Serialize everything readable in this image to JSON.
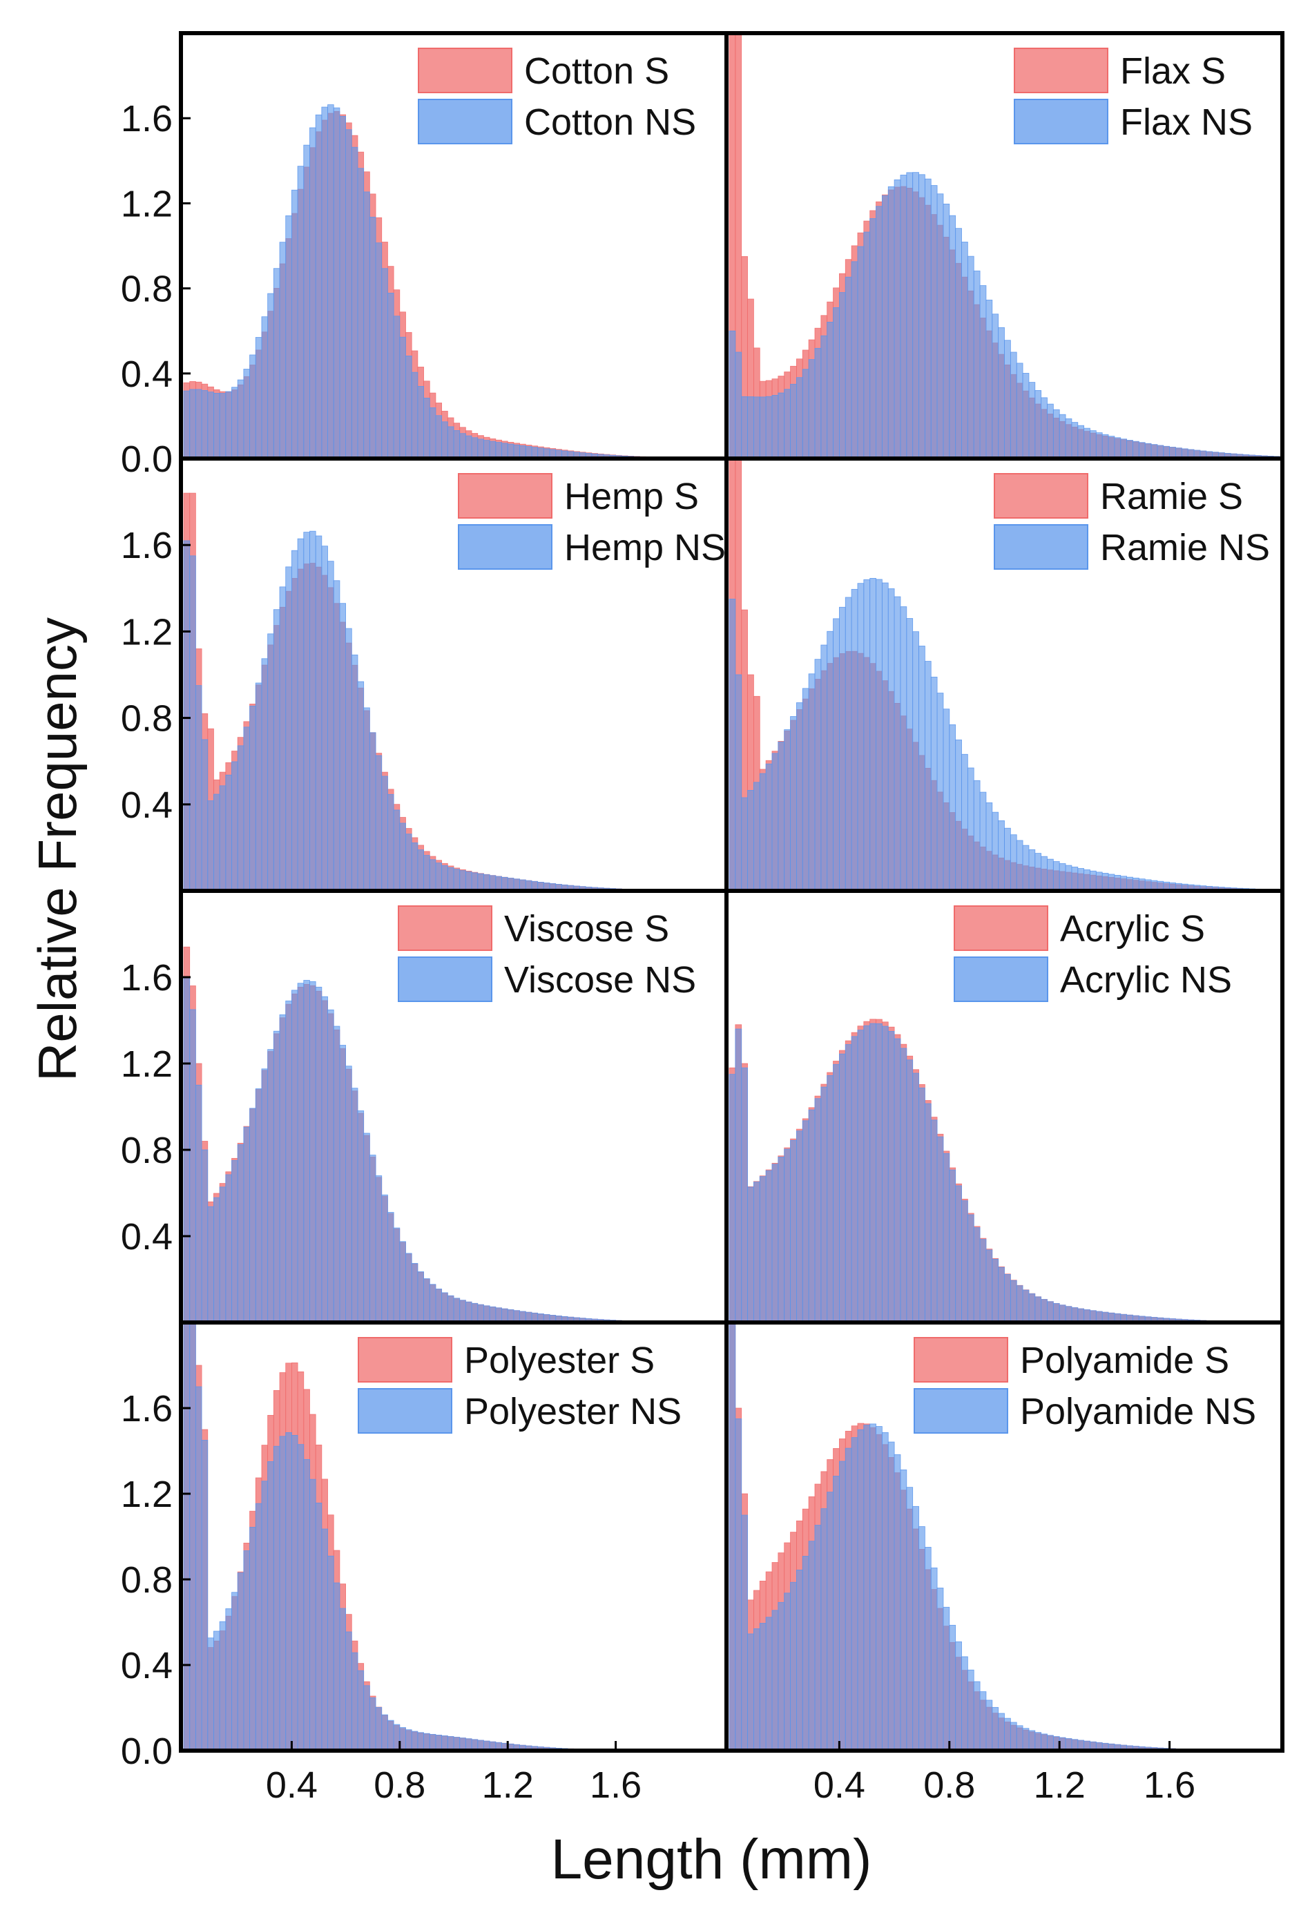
{
  "figure": {
    "ylabel": "Relative Frequency",
    "xlabel": "Length (mm)"
  },
  "colors": {
    "s_fill": "#f06b6b",
    "ns_fill": "#5a96ec",
    "frame": "#000000"
  },
  "chart_data": [
    {
      "type": "bar",
      "panel": "top-left",
      "xlim": [
        0,
        2.0
      ],
      "ylim": [
        0,
        2.0
      ],
      "xticks": [],
      "yticks": [
        0.0,
        0.4,
        0.8,
        1.2,
        1.6
      ],
      "legend_position": "top-right",
      "series": [
        {
          "name": "Cotton S",
          "color": "#f06b6b",
          "peaks": [
            {
              "mu": 0.56,
              "sigma": 0.18,
              "amp": 1.58
            },
            {
              "mu": 0.02,
              "sigma": 0.12,
              "amp": 0.34
            },
            {
              "mu": 0.95,
              "sigma": 0.34,
              "amp": 0.1
            }
          ]
        },
        {
          "name": "Cotton NS",
          "color": "#5a96ec",
          "peaks": [
            {
              "mu": 0.54,
              "sigma": 0.175,
              "amp": 1.62
            },
            {
              "mu": 0.02,
              "sigma": 0.12,
              "amp": 0.3
            },
            {
              "mu": 0.95,
              "sigma": 0.34,
              "amp": 0.09
            }
          ]
        }
      ]
    },
    {
      "type": "bar",
      "panel": "top-right",
      "xlim": [
        0,
        2.0
      ],
      "ylim": [
        0,
        2.0
      ],
      "xticks": [],
      "yticks": [],
      "legend_position": "top-right",
      "series": [
        {
          "name": "Flax S",
          "color": "#f06b6b",
          "spike": [
            2.0,
            2.0,
            0.95,
            0.75,
            0.52
          ],
          "peaks": [
            {
              "mu": 0.62,
              "sigma": 0.24,
              "amp": 1.22
            },
            {
              "mu": 0.0,
              "sigma": 0.15,
              "amp": 0.3
            },
            {
              "mu": 1.1,
              "sigma": 0.4,
              "amp": 0.12
            }
          ]
        },
        {
          "name": "Flax NS",
          "color": "#5a96ec",
          "spike": [
            0.6,
            0.5
          ],
          "peaks": [
            {
              "mu": 0.66,
              "sigma": 0.24,
              "amp": 1.28
            },
            {
              "mu": 0.0,
              "sigma": 0.15,
              "amp": 0.25
            },
            {
              "mu": 1.1,
              "sigma": 0.4,
              "amp": 0.12
            }
          ]
        }
      ]
    },
    {
      "type": "bar",
      "panel": "second-left",
      "xlim": [
        0,
        2.0
      ],
      "ylim": [
        0,
        2.0
      ],
      "xticks": [],
      "yticks": [
        0.4,
        0.8,
        1.2,
        1.6
      ],
      "legend_position": "top-right",
      "series": [
        {
          "name": "Hemp S",
          "color": "#f06b6b",
          "spike": [
            1.84,
            1.84,
            1.12,
            0.82,
            0.75
          ],
          "peaks": [
            {
              "mu": 0.47,
              "sigma": 0.18,
              "amp": 1.45
            },
            {
              "mu": 0.0,
              "sigma": 0.18,
              "amp": 0.35
            },
            {
              "mu": 0.85,
              "sigma": 0.35,
              "amp": 0.1
            }
          ]
        },
        {
          "name": "Hemp NS",
          "color": "#5a96ec",
          "spike": [
            1.62,
            1.55,
            0.95,
            0.7
          ],
          "peaks": [
            {
              "mu": 0.47,
              "sigma": 0.17,
              "amp": 1.6
            },
            {
              "mu": 0.0,
              "sigma": 0.18,
              "amp": 0.3
            },
            {
              "mu": 0.85,
              "sigma": 0.35,
              "amp": 0.1
            }
          ]
        }
      ]
    },
    {
      "type": "bar",
      "panel": "second-right",
      "xlim": [
        0,
        2.0
      ],
      "ylim": [
        0,
        2.0
      ],
      "xticks": [],
      "yticks": [],
      "legend_position": "top-right",
      "series": [
        {
          "name": "Ramie S",
          "color": "#f06b6b",
          "spike": [
            2.0,
            2.0,
            1.3,
            1.0,
            0.9
          ],
          "peaks": [
            {
              "mu": 0.45,
              "sigma": 0.22,
              "amp": 1.05
            },
            {
              "mu": 0.0,
              "sigma": 0.2,
              "amp": 0.25
            },
            {
              "mu": 1.0,
              "sigma": 0.4,
              "amp": 0.1
            }
          ]
        },
        {
          "name": "Ramie NS",
          "color": "#5a96ec",
          "spike": [
            1.35,
            1.0
          ],
          "peaks": [
            {
              "mu": 0.52,
              "sigma": 0.24,
              "amp": 1.38
            },
            {
              "mu": 0.0,
              "sigma": 0.2,
              "amp": 0.22
            },
            {
              "mu": 1.0,
              "sigma": 0.4,
              "amp": 0.12
            }
          ]
        }
      ]
    },
    {
      "type": "bar",
      "panel": "third-left",
      "xlim": [
        0,
        2.0
      ],
      "ylim": [
        0,
        2.0
      ],
      "xticks": [],
      "yticks": [
        0.4,
        0.8,
        1.2,
        1.6
      ],
      "legend_position": "top-right",
      "series": [
        {
          "name": "Viscose S",
          "color": "#f06b6b",
          "spike": [
            1.74,
            1.56,
            1.2,
            0.84
          ],
          "peaks": [
            {
              "mu": 0.46,
              "sigma": 0.19,
              "amp": 1.5
            },
            {
              "mu": 0.0,
              "sigma": 0.18,
              "amp": 0.35
            },
            {
              "mu": 0.85,
              "sigma": 0.35,
              "amp": 0.1
            }
          ]
        },
        {
          "name": "Viscose NS",
          "color": "#5a96ec",
          "spike": [
            1.6,
            1.45,
            1.1,
            0.8
          ],
          "peaks": [
            {
              "mu": 0.46,
              "sigma": 0.19,
              "amp": 1.52
            },
            {
              "mu": 0.0,
              "sigma": 0.18,
              "amp": 0.32
            },
            {
              "mu": 0.85,
              "sigma": 0.35,
              "amp": 0.1
            }
          ]
        }
      ]
    },
    {
      "type": "bar",
      "panel": "third-right",
      "xlim": [
        0,
        2.0
      ],
      "ylim": [
        0,
        2.0
      ],
      "xticks": [],
      "yticks": [],
      "legend_position": "top-right",
      "series": [
        {
          "name": "Acrylic S",
          "color": "#f06b6b",
          "spike": [
            1.18,
            1.38,
            1.2
          ],
          "peaks": [
            {
              "mu": 0.55,
              "sigma": 0.22,
              "amp": 1.3
            },
            {
              "mu": 0.05,
              "sigma": 0.25,
              "amp": 0.5
            },
            {
              "mu": 1.0,
              "sigma": 0.35,
              "amp": 0.08
            }
          ]
        },
        {
          "name": "Acrylic NS",
          "color": "#5a96ec",
          "spike": [
            1.15,
            1.36,
            1.18
          ],
          "peaks": [
            {
              "mu": 0.55,
              "sigma": 0.22,
              "amp": 1.28
            },
            {
              "mu": 0.05,
              "sigma": 0.25,
              "amp": 0.5
            },
            {
              "mu": 1.0,
              "sigma": 0.35,
              "amp": 0.08
            }
          ]
        }
      ]
    },
    {
      "type": "bar",
      "panel": "bottom-left",
      "xlim": [
        0,
        2.0
      ],
      "ylim": [
        0,
        2.0
      ],
      "xticks": [
        0.4,
        0.8,
        1.2,
        1.6
      ],
      "yticks": [
        0.0,
        0.4,
        0.8,
        1.2,
        1.6
      ],
      "legend_position": "top-right",
      "series": [
        {
          "name": "Polyester S",
          "color": "#f06b6b",
          "spike": [
            2.0,
            2.0,
            1.8,
            1.5
          ],
          "peaks": [
            {
              "mu": 0.4,
              "sigma": 0.14,
              "amp": 1.78
            },
            {
              "mu": 0.0,
              "sigma": 0.13,
              "amp": 0.4
            },
            {
              "mu": 0.8,
              "sigma": 0.3,
              "amp": 0.08
            }
          ]
        },
        {
          "name": "Polyester NS",
          "color": "#5a96ec",
          "spike": [
            2.0,
            2.0,
            1.7,
            1.45
          ],
          "peaks": [
            {
              "mu": 0.39,
              "sigma": 0.15,
              "amp": 1.45
            },
            {
              "mu": 0.0,
              "sigma": 0.13,
              "amp": 0.4
            },
            {
              "mu": 0.8,
              "sigma": 0.3,
              "amp": 0.08
            }
          ]
        }
      ]
    },
    {
      "type": "bar",
      "panel": "bottom-right",
      "xlim": [
        0,
        2.0
      ],
      "ylim": [
        0,
        2.0
      ],
      "xticks": [
        0.4,
        0.8,
        1.2,
        1.6
      ],
      "yticks": [],
      "legend_position": "top-right",
      "series": [
        {
          "name": "Polyamide S",
          "color": "#f06b6b",
          "spike": [
            2.0,
            1.6,
            1.2
          ],
          "peaks": [
            {
              "mu": 0.5,
              "sigma": 0.2,
              "amp": 1.45
            },
            {
              "mu": 0.1,
              "sigma": 0.18,
              "amp": 0.55
            },
            {
              "mu": 0.95,
              "sigma": 0.32,
              "amp": 0.08
            }
          ]
        },
        {
          "name": "Polyamide NS",
          "color": "#5a96ec",
          "spike": [
            2.0,
            1.55,
            1.1
          ],
          "peaks": [
            {
              "mu": 0.52,
              "sigma": 0.2,
              "amp": 1.48
            },
            {
              "mu": 0.05,
              "sigma": 0.18,
              "amp": 0.42
            },
            {
              "mu": 0.95,
              "sigma": 0.32,
              "amp": 0.08
            }
          ]
        }
      ]
    }
  ]
}
